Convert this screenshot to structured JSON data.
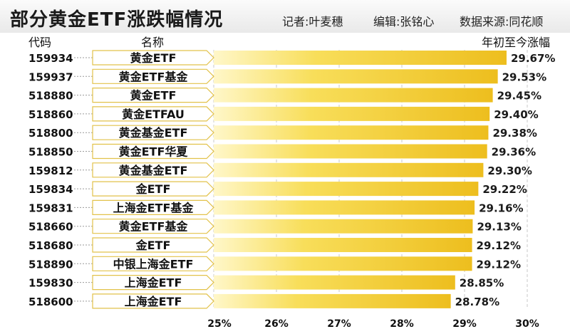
{
  "header": {
    "title": "部分黄金ETF涨跌幅情况",
    "reporter": "记者:叶麦穗",
    "editor": "编辑:张铭心",
    "source": "数据来源:同花顺"
  },
  "columns": {
    "code": "代码",
    "name": "名称",
    "change": "年初至今涨幅"
  },
  "chart_data": {
    "type": "bar",
    "orientation": "horizontal",
    "title": "部分黄金ETF涨跌幅情况",
    "xlabel": "",
    "ylabel": "",
    "xlim": [
      25,
      30
    ],
    "xticks": [
      "25%",
      "26%",
      "27%",
      "28%",
      "29%",
      "30%"
    ],
    "grid": "vertical dashed",
    "bar_color": "#F3CC2A",
    "label_color": "#1a1a1a",
    "rows": [
      {
        "code": "159934",
        "name": "黄金ETF",
        "value": 29.67,
        "label": "29.67%"
      },
      {
        "code": "159937",
        "name": "黄金ETF基金",
        "value": 29.53,
        "label": "29.53%"
      },
      {
        "code": "518880",
        "name": "黄金ETF",
        "value": 29.45,
        "label": "29.45%"
      },
      {
        "code": "518860",
        "name": "黄金ETFAU",
        "value": 29.4,
        "label": "29.40%"
      },
      {
        "code": "518800",
        "name": "黄金基金ETF",
        "value": 29.38,
        "label": "29.38%"
      },
      {
        "code": "518850",
        "name": "黄金ETF华夏",
        "value": 29.36,
        "label": "29.36%"
      },
      {
        "code": "159812",
        "name": "黄金基金ETF",
        "value": 29.3,
        "label": "29.30%"
      },
      {
        "code": "159834",
        "name": "金ETF",
        "value": 29.22,
        "label": "29.22%"
      },
      {
        "code": "159831",
        "name": "上海金ETF基金",
        "value": 29.16,
        "label": "29.16%"
      },
      {
        "code": "518660",
        "name": "黄金ETF基金",
        "value": 29.13,
        "label": "29.13%"
      },
      {
        "code": "518680",
        "name": "金ETF",
        "value": 29.12,
        "label": "29.12%"
      },
      {
        "code": "518890",
        "name": "中银上海金ETF",
        "value": 29.12,
        "label": "29.12%"
      },
      {
        "code": "159830",
        "name": "上海金ETF",
        "value": 28.85,
        "label": "28.85%"
      },
      {
        "code": "518600",
        "name": "上海金ETF",
        "value": 28.78,
        "label": "28.78%"
      }
    ]
  }
}
